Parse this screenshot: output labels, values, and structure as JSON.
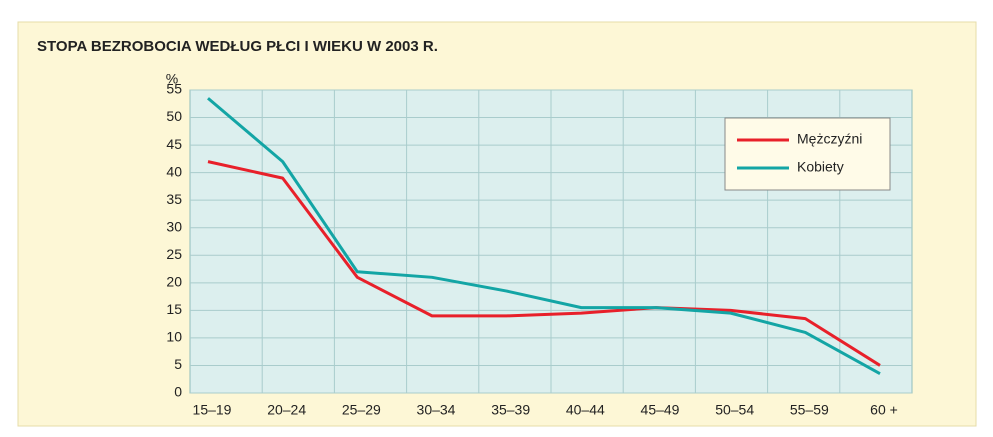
{
  "chart_data": {
    "type": "line",
    "title": "STOPA BEZROBOCIA WEDŁUG PŁCI I WIEKU W 2003 R.",
    "y_label": "%",
    "categories": [
      "15–19",
      "20–24",
      "25–29",
      "30–34",
      "35–39",
      "40–44",
      "45–49",
      "50–54",
      "55–59",
      "60 +"
    ],
    "series": [
      {
        "name": "Mężczyźni",
        "color": "#e8202a",
        "values": [
          42,
          39,
          21,
          14,
          14,
          14.5,
          15.5,
          15,
          13.5,
          5
        ]
      },
      {
        "name": "Kobiety",
        "color": "#13a5a5",
        "values": [
          53.5,
          42,
          22,
          21,
          18.5,
          15.5,
          15.5,
          14.5,
          11,
          3.5
        ]
      }
    ],
    "ylim": [
      0,
      55
    ],
    "yticks": [
      0,
      5,
      10,
      15,
      20,
      25,
      30,
      35,
      40,
      45,
      50,
      55
    ],
    "grid": true,
    "legend": "upper right"
  }
}
